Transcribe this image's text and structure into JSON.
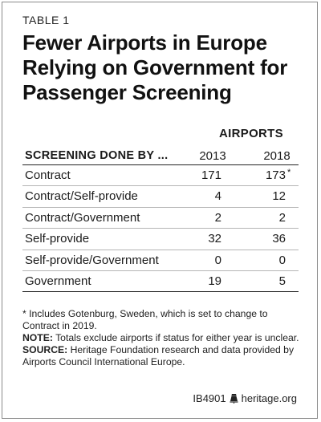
{
  "table_label": "TABLE 1",
  "title": "Fewer Airports in Europe Relying on Government for Passenger Screening",
  "group_header": "AIRPORTS",
  "columns": [
    "SCREENING DONE BY ...",
    "2013",
    "2018"
  ],
  "rows": [
    {
      "label": "Contract",
      "y2013": "171",
      "y2018": "173",
      "mark": "*"
    },
    {
      "label": "Contract/Self-provide",
      "y2013": "4",
      "y2018": "12",
      "mark": ""
    },
    {
      "label": "Contract/Government",
      "y2013": "2",
      "y2018": "2",
      "mark": ""
    },
    {
      "label": "Self-provide",
      "y2013": "32",
      "y2018": "36",
      "mark": ""
    },
    {
      "label": "Self-provide/Government",
      "y2013": "0",
      "y2018": "0",
      "mark": ""
    },
    {
      "label": "Government",
      "y2013": "19",
      "y2018": "5",
      "mark": ""
    }
  ],
  "footnote": "* Includes Gotenburg, Sweden, which is set to change to Contract in 2019.",
  "note_label": "NOTE:",
  "note_text": " Totals exclude airports if status for either year is unclear.",
  "source_label": "SOURCE:",
  "source_text": " Heritage Foundation research and data provided by Airports Council International Europe.",
  "footer_id": "IB4901",
  "footer_site": "heritage.org",
  "footer_icon": "bell-icon"
}
